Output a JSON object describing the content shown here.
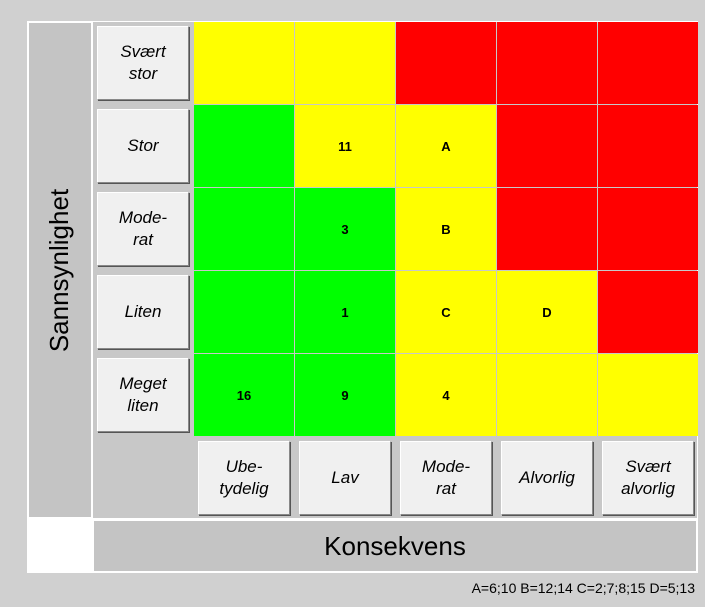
{
  "y_axis_title": "Sannsynlighet",
  "x_axis_title": "Konsekvens",
  "rows": [
    {
      "label": [
        "Svært",
        "stor"
      ],
      "cells": [
        {
          "color": "#ffff00"
        },
        {
          "color": "#ffff00"
        },
        {
          "color": "#ff0000"
        },
        {
          "color": "#ff0000"
        },
        {
          "color": "#ff0000"
        }
      ]
    },
    {
      "label": [
        "Stor"
      ],
      "cells": [
        {
          "color": "#00ff00"
        },
        {
          "color": "#ffff00",
          "text": "11"
        },
        {
          "color": "#ffff00",
          "text": "A"
        },
        {
          "color": "#ff0000"
        },
        {
          "color": "#ff0000"
        }
      ]
    },
    {
      "label": [
        "Mode-",
        "rat"
      ],
      "cells": [
        {
          "color": "#00ff00"
        },
        {
          "color": "#00ff00",
          "text": "3"
        },
        {
          "color": "#ffff00",
          "text": "B"
        },
        {
          "color": "#ff0000"
        },
        {
          "color": "#ff0000"
        }
      ]
    },
    {
      "label": [
        "Liten"
      ],
      "cells": [
        {
          "color": "#00ff00"
        },
        {
          "color": "#00ff00",
          "text": "1"
        },
        {
          "color": "#ffff00",
          "text": "C"
        },
        {
          "color": "#ffff00",
          "text": "D"
        },
        {
          "color": "#ff0000"
        }
      ]
    },
    {
      "label": [
        "Meget",
        "liten"
      ],
      "cells": [
        {
          "color": "#00ff00",
          "text": "16"
        },
        {
          "color": "#00ff00",
          "text": "9"
        },
        {
          "color": "#ffff00",
          "text": "4"
        },
        {
          "color": "#ffff00"
        },
        {
          "color": "#ffff00"
        }
      ]
    }
  ],
  "columns": [
    [
      "Ube-",
      "tydelig"
    ],
    [
      "Lav"
    ],
    [
      "Mode-",
      "rat"
    ],
    [
      "Alvorlig"
    ],
    [
      "Svært",
      "alvorlig"
    ]
  ],
  "legend": "A=6;10 B=12;14 C=2;7;8;15 D=5;13"
}
